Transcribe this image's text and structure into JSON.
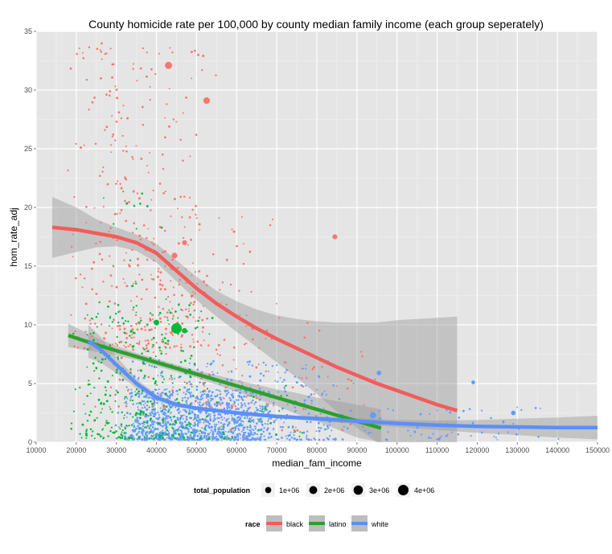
{
  "chart_data": {
    "type": "scatter",
    "title": "County homicide rate per 100,000 by county median family income (each group seperately)",
    "xlabel": "median_fam_income",
    "ylabel": "hom_rate_adj",
    "xlim": [
      10000,
      150000
    ],
    "ylim": [
      0,
      35
    ],
    "x_ticks": [
      10000,
      20000,
      30000,
      40000,
      50000,
      60000,
      70000,
      80000,
      90000,
      100000,
      110000,
      120000,
      130000,
      140000,
      150000
    ],
    "y_ticks": [
      0,
      5,
      10,
      15,
      20,
      25,
      30,
      35
    ],
    "grid": true,
    "legend_position": "bottom",
    "size_legend": {
      "title": "total_population",
      "entries": [
        {
          "label": "1e+06",
          "value": 1000000
        },
        {
          "label": "2e+06",
          "value": 2000000
        },
        {
          "label": "3e+06",
          "value": 3000000
        },
        {
          "label": "4e+06",
          "value": 4000000
        }
      ]
    },
    "color_legend": {
      "title": "race",
      "entries": [
        {
          "label": "black",
          "color": "#f8766d"
        },
        {
          "label": "latino",
          "color": "#00ba38"
        },
        {
          "label": "white",
          "color": "#619cff"
        }
      ]
    },
    "line_colors": {
      "black": "#f25c5c",
      "latino": "#2ca02c",
      "white": "#5b8ff9"
    },
    "series": [
      {
        "name": "black",
        "color": "#f8766d",
        "point_clusters": [
          {
            "x_range": [
              17000,
              55000
            ],
            "y_range": [
              8,
              34
            ],
            "count": 340
          },
          {
            "x_range": [
              22000,
              72000
            ],
            "y_range": [
              3,
              20
            ],
            "count": 160
          },
          {
            "x_range": [
              50000,
              96000
            ],
            "y_range": [
              1,
              12
            ],
            "count": 60
          }
        ],
        "notable_points": [
          {
            "x": 43000,
            "y": 32.1,
            "population": 1500000
          },
          {
            "x": 52500,
            "y": 29.1,
            "population": 1200000
          },
          {
            "x": 44500,
            "y": 15.9,
            "population": 800000
          },
          {
            "x": 84500,
            "y": 17.5,
            "population": 500000
          },
          {
            "x": 47000,
            "y": 17.0,
            "population": 500000
          }
        ],
        "smooth": {
          "x": [
            14000,
            20000,
            25000,
            30000,
            35000,
            40000,
            45000,
            50000,
            55000,
            60000,
            65000,
            70000,
            75000,
            80000,
            85000,
            90000,
            95000,
            100000,
            105000,
            110000,
            115000
          ],
          "y": [
            18.3,
            18.1,
            17.8,
            17.5,
            17.0,
            16.1,
            14.6,
            13.1,
            11.8,
            10.7,
            9.7,
            8.8,
            8.0,
            7.2,
            6.4,
            5.7,
            5.0,
            4.4,
            3.8,
            3.2,
            2.7
          ],
          "band_half_width": [
            2.6,
            1.9,
            1.2,
            0.8,
            0.7,
            0.8,
            0.9,
            1.0,
            1.1,
            1.3,
            1.6,
            2.0,
            2.5,
            3.1,
            3.8,
            4.5,
            5.2,
            6.0,
            6.7,
            7.4,
            8.0
          ]
        }
      },
      {
        "name": "latino",
        "color": "#00ba38",
        "point_clusters": [
          {
            "x_range": [
              18000,
              55000
            ],
            "y_range": [
              0.3,
              12
            ],
            "count": 360
          },
          {
            "x_range": [
              25000,
              45000
            ],
            "y_range": [
              10,
              22
            ],
            "count": 25
          },
          {
            "x_range": [
              50000,
              80000
            ],
            "y_range": [
              0.3,
              5
            ],
            "count": 40
          }
        ],
        "notable_points": [
          {
            "x": 45000,
            "y": 9.7,
            "population": 4000000
          },
          {
            "x": 40000,
            "y": 10.2,
            "population": 700000
          },
          {
            "x": 47000,
            "y": 9.5,
            "population": 600000
          }
        ],
        "smooth": {
          "x": [
            18000,
            25000,
            30000,
            35000,
            40000,
            45000,
            50000,
            55000,
            60000,
            65000,
            70000,
            75000,
            80000,
            85000,
            90000,
            96000
          ],
          "y": [
            9.1,
            8.3,
            7.8,
            7.3,
            6.8,
            6.3,
            5.8,
            5.3,
            4.8,
            4.3,
            3.8,
            3.3,
            2.8,
            2.3,
            1.8,
            1.2
          ],
          "band_half_width": [
            1.0,
            0.6,
            0.4,
            0.3,
            0.3,
            0.3,
            0.3,
            0.4,
            0.5,
            0.6,
            0.7,
            0.9,
            1.0,
            1.2,
            1.4,
            1.6
          ]
        }
      },
      {
        "name": "white",
        "color": "#619cff",
        "point_clusters": [
          {
            "x_range": [
              30000,
              70000
            ],
            "y_range": [
              0.2,
              4.5
            ],
            "count": 900
          },
          {
            "x_range": [
              25000,
              90000
            ],
            "y_range": [
              0.2,
              7
            ],
            "count": 400
          },
          {
            "x_range": [
              70000,
              145000
            ],
            "y_range": [
              0.2,
              3
            ],
            "count": 80
          }
        ],
        "notable_points": [
          {
            "x": 94000,
            "y": 2.3,
            "population": 1000000
          },
          {
            "x": 95500,
            "y": 5.9,
            "population": 400000
          },
          {
            "x": 129000,
            "y": 2.5,
            "population": 400000
          },
          {
            "x": 119000,
            "y": 5.1,
            "population": 200000
          }
        ],
        "smooth": {
          "x": [
            23000,
            26000,
            30000,
            35000,
            40000,
            45000,
            50000,
            55000,
            60000,
            65000,
            70000,
            80000,
            90000,
            100000,
            110000,
            120000,
            130000,
            140000,
            150000
          ],
          "y": [
            8.6,
            7.9,
            6.6,
            5.0,
            3.8,
            3.2,
            2.9,
            2.7,
            2.5,
            2.35,
            2.2,
            2.0,
            1.8,
            1.6,
            1.45,
            1.35,
            1.3,
            1.25,
            1.25
          ],
          "band_half_width": [
            1.4,
            1.1,
            0.7,
            0.4,
            0.25,
            0.2,
            0.15,
            0.15,
            0.15,
            0.15,
            0.15,
            0.2,
            0.25,
            0.3,
            0.4,
            0.55,
            0.7,
            0.85,
            1.0
          ]
        }
      }
    ]
  }
}
